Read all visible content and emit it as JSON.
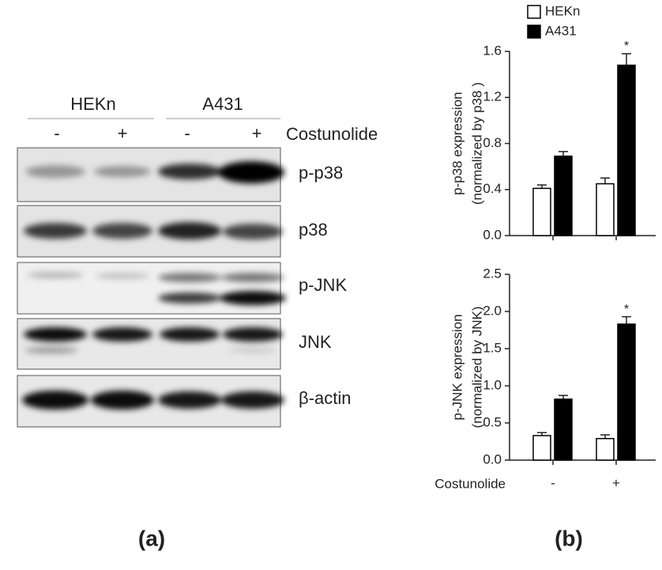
{
  "panel_a": {
    "groups": [
      "HEKn",
      "A431"
    ],
    "treatment": "Costunolide",
    "signs": [
      "-",
      "+",
      "-",
      "+"
    ],
    "bands": [
      "p-p38",
      "p38",
      "p-JNK",
      "JNK",
      "β-actin"
    ],
    "label": "(a)"
  },
  "panel_b_label": "(b)",
  "chart_data": [
    {
      "type": "bar",
      "ylabel": [
        "p-p38 expression",
        "(normalized by p38 )"
      ],
      "categories": [
        null,
        null
      ],
      "series": [
        {
          "name": "HEKn",
          "color": "#ffffff",
          "values": [
            0.41,
            0.45
          ],
          "errors": [
            0.03,
            0.05
          ]
        },
        {
          "name": "A431",
          "color": "#000000",
          "values": [
            0.69,
            1.48
          ],
          "errors": [
            0.04,
            0.1
          ]
        }
      ],
      "annotation": "*",
      "ylim": [
        0,
        1.6
      ],
      "yticks": [
        {
          "value": 0,
          "label": "0.0"
        },
        0.4,
        0.8,
        1.2,
        1.6
      ],
      "legend": "top"
    },
    {
      "type": "bar",
      "ylabel": [
        "p-JNK expression",
        "(normalized by JNK)"
      ],
      "xlabel": "Costunolide",
      "categories": [
        "-",
        "+"
      ],
      "series": [
        {
          "name": "HEKn",
          "color": "#ffffff",
          "values": [
            0.33,
            0.29
          ],
          "errors": [
            0.04,
            0.05
          ]
        },
        {
          "name": "A431",
          "color": "#000000",
          "values": [
            0.82,
            1.83
          ],
          "errors": [
            0.05,
            0.1
          ]
        }
      ],
      "annotation": "*",
      "ylim": [
        0,
        2.5
      ],
      "yticks": [
        {
          "value": 0,
          "label": "0.0"
        },
        0.5,
        {
          "value": 1,
          "label": "1.0"
        },
        1.5,
        {
          "value": 2,
          "label": "2.0"
        },
        2.5
      ]
    }
  ]
}
